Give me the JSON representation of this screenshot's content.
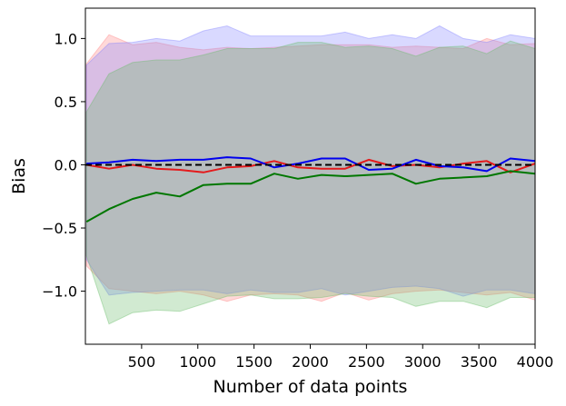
{
  "chart_data": {
    "type": "line",
    "title": "",
    "xlabel": "Number of data points",
    "ylabel": "Bias",
    "xlim": [
      0,
      4000
    ],
    "ylim": [
      -1.42,
      1.24
    ],
    "grid": false,
    "legend": "none",
    "xticks": [
      500,
      1000,
      1500,
      2000,
      2500,
      3000,
      3500,
      4000
    ],
    "xtick_labels": [
      "500",
      "1000",
      "1500",
      "2000",
      "2500",
      "3000",
      "3500",
      "4000"
    ],
    "yticks": [
      -1.0,
      -0.5,
      0.0,
      0.5,
      1.0
    ],
    "ytick_labels": [
      "−1.0",
      "−0.5",
      "0.0",
      "0.5",
      "1.0"
    ],
    "reference_line": {
      "y": 0,
      "style": "dashed",
      "color": "#000000"
    },
    "x": [
      10,
      210,
      420,
      630,
      840,
      1050,
      1260,
      1470,
      1680,
      1890,
      2100,
      2310,
      2520,
      2730,
      2940,
      3150,
      3360,
      3570,
      3780,
      4000
    ],
    "series": [
      {
        "color": "#e41a1c",
        "fill": "#ff8080",
        "values": [
          0.0,
          -0.03,
          0.0,
          -0.03,
          -0.04,
          -0.06,
          -0.02,
          -0.01,
          0.03,
          -0.02,
          -0.03,
          -0.03,
          0.04,
          -0.01,
          0.0,
          -0.02,
          0.01,
          0.03,
          -0.06,
          0.01
        ],
        "upper": [
          0.8,
          1.03,
          0.95,
          0.97,
          0.93,
          0.91,
          0.93,
          0.92,
          0.93,
          0.94,
          0.95,
          0.95,
          0.95,
          0.93,
          0.94,
          0.93,
          0.92,
          1.0,
          0.95,
          0.96
        ],
        "lower": [
          -0.8,
          -0.98,
          -1.0,
          -1.02,
          -1.0,
          -1.03,
          -1.08,
          -1.03,
          -1.02,
          -1.03,
          -1.08,
          -1.01,
          -1.07,
          -1.02,
          -1.0,
          -0.99,
          -1.01,
          -1.03,
          -1.01,
          -1.07
        ]
      },
      {
        "color": "#0000ee",
        "fill": "#8080ff",
        "values": [
          0.01,
          0.02,
          0.04,
          0.03,
          0.04,
          0.04,
          0.06,
          0.05,
          -0.02,
          0.01,
          0.05,
          0.05,
          -0.04,
          -0.03,
          0.04,
          -0.01,
          -0.02,
          -0.05,
          0.05,
          0.03
        ],
        "upper": [
          0.79,
          0.96,
          0.97,
          1.0,
          0.98,
          1.06,
          1.1,
          1.02,
          1.02,
          1.02,
          1.02,
          1.05,
          1.0,
          1.03,
          1.0,
          1.1,
          1.0,
          0.97,
          1.03,
          1.0
        ],
        "lower": [
          -0.75,
          -1.03,
          -1.01,
          -1.0,
          -0.99,
          -0.99,
          -1.02,
          -0.99,
          -1.01,
          -1.01,
          -0.98,
          -1.03,
          -1.0,
          -0.97,
          -0.96,
          -0.98,
          -1.04,
          -0.99,
          -0.99,
          -1.02
        ]
      },
      {
        "color": "#007700",
        "fill": "#66bb66",
        "values": [
          -0.45,
          -0.35,
          -0.27,
          -0.22,
          -0.25,
          -0.16,
          -0.15,
          -0.15,
          -0.07,
          -0.11,
          -0.08,
          -0.09,
          -0.08,
          -0.07,
          -0.15,
          -0.11,
          -0.1,
          -0.09,
          -0.05,
          -0.07
        ],
        "upper": [
          0.42,
          0.72,
          0.81,
          0.83,
          0.83,
          0.87,
          0.92,
          0.92,
          0.92,
          0.97,
          0.97,
          0.93,
          0.94,
          0.92,
          0.86,
          0.93,
          0.94,
          0.88,
          0.98,
          0.92
        ],
        "lower": [
          -0.72,
          -1.26,
          -1.17,
          -1.15,
          -1.16,
          -1.1,
          -1.04,
          -1.03,
          -1.06,
          -1.06,
          -1.05,
          -1.02,
          -1.04,
          -1.05,
          -1.12,
          -1.08,
          -1.08,
          -1.13,
          -1.05,
          -1.05
        ]
      }
    ]
  }
}
